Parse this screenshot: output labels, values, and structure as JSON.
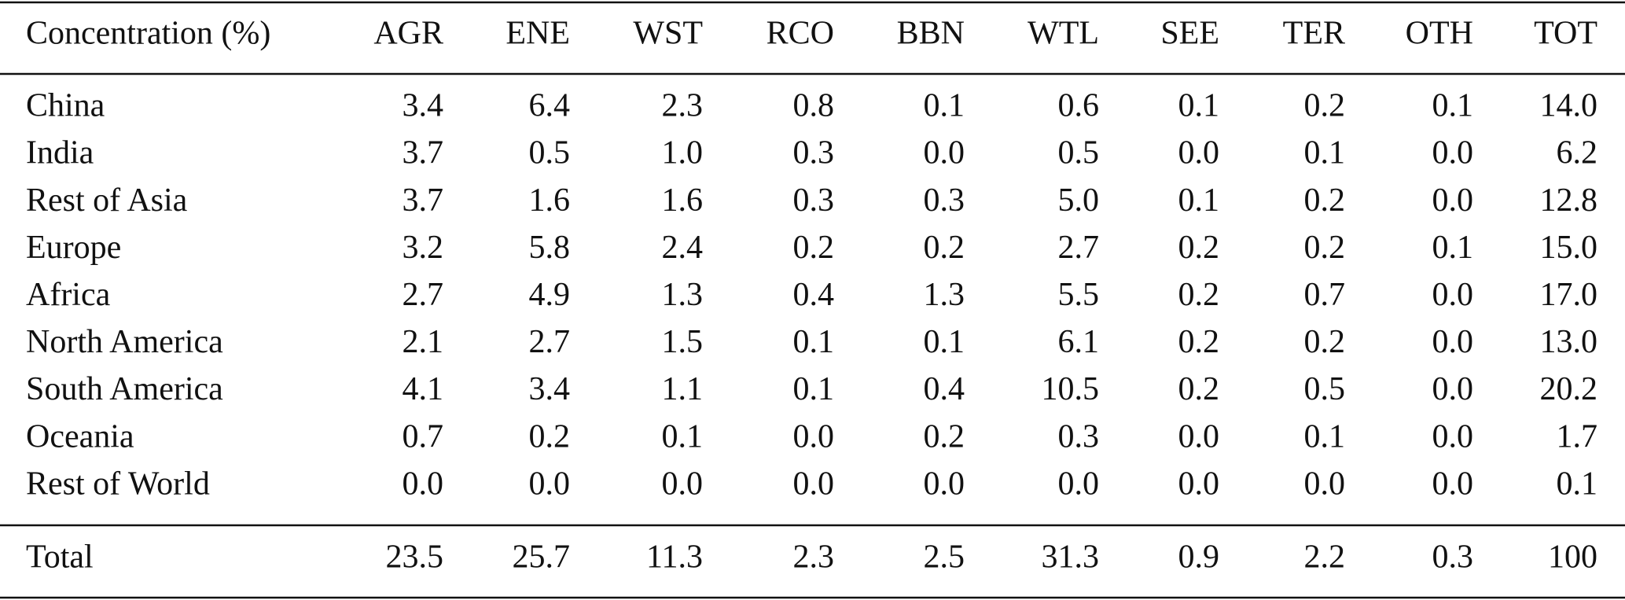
{
  "table": {
    "header": [
      "Concentration (%)",
      "AGR",
      "ENE",
      "WST",
      "RCO",
      "BBN",
      "WTL",
      "SEE",
      "TER",
      "OTH",
      "TOT"
    ],
    "rows": [
      [
        "China",
        "3.4",
        "6.4",
        "2.3",
        "0.8",
        "0.1",
        "0.6",
        "0.1",
        "0.2",
        "0.1",
        "14.0"
      ],
      [
        "India",
        "3.7",
        "0.5",
        "1.0",
        "0.3",
        "0.0",
        "0.5",
        "0.0",
        "0.1",
        "0.0",
        "6.2"
      ],
      [
        "Rest of Asia",
        "3.7",
        "1.6",
        "1.6",
        "0.3",
        "0.3",
        "5.0",
        "0.1",
        "0.2",
        "0.0",
        "12.8"
      ],
      [
        "Europe",
        "3.2",
        "5.8",
        "2.4",
        "0.2",
        "0.2",
        "2.7",
        "0.2",
        "0.2",
        "0.1",
        "15.0"
      ],
      [
        "Africa",
        "2.7",
        "4.9",
        "1.3",
        "0.4",
        "1.3",
        "5.5",
        "0.2",
        "0.7",
        "0.0",
        "17.0"
      ],
      [
        "North America",
        "2.1",
        "2.7",
        "1.5",
        "0.1",
        "0.1",
        "6.1",
        "0.2",
        "0.2",
        "0.0",
        "13.0"
      ],
      [
        "South America",
        "4.1",
        "3.4",
        "1.1",
        "0.1",
        "0.4",
        "10.5",
        "0.2",
        "0.5",
        "0.0",
        "20.2"
      ],
      [
        "Oceania",
        "0.7",
        "0.2",
        "0.1",
        "0.0",
        "0.2",
        "0.3",
        "0.0",
        "0.1",
        "0.0",
        "1.7"
      ],
      [
        "Rest of World",
        "0.0",
        "0.0",
        "0.0",
        "0.0",
        "0.0",
        "0.0",
        "0.0",
        "0.0",
        "0.0",
        "0.1"
      ]
    ],
    "total": [
      "Total",
      "23.5",
      "25.7",
      "11.3",
      "2.3",
      "2.5",
      "31.3",
      "0.9",
      "2.2",
      "0.3",
      "100"
    ]
  }
}
